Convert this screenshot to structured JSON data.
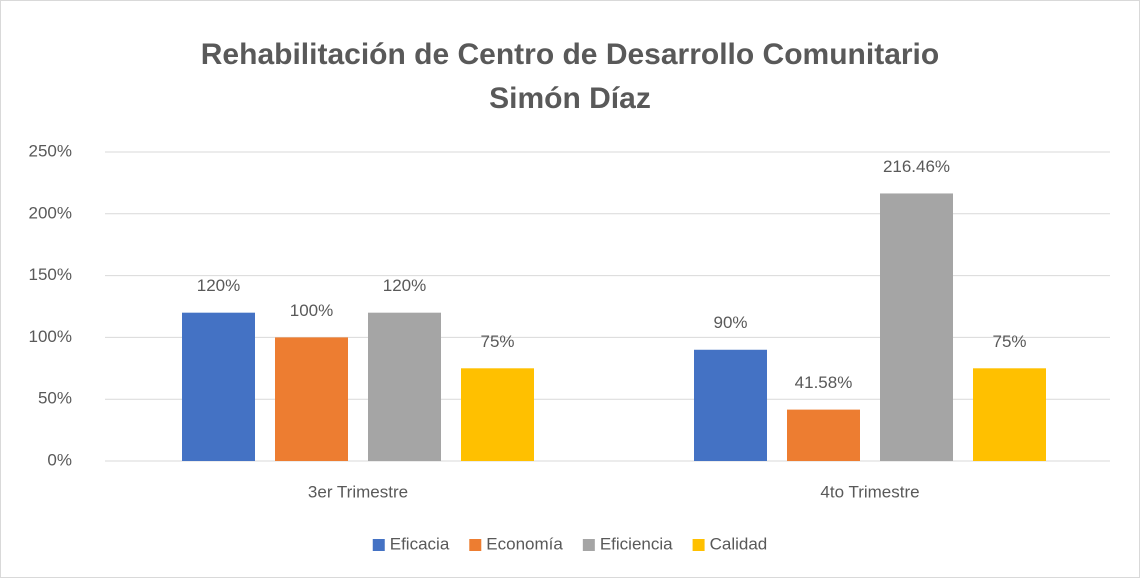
{
  "chart_data": {
    "type": "bar",
    "title": [
      "Rehabilitación de Centro de Desarrollo Comunitario",
      "Simón Díaz"
    ],
    "categories": [
      "3er Trimestre",
      "4to Trimestre"
    ],
    "series": [
      {
        "name": "Eficacia",
        "color": "#4472c4",
        "values": [
          120,
          90
        ],
        "value_labels": [
          "120%",
          "90%"
        ]
      },
      {
        "name": "Economía",
        "color": "#ed7d31",
        "values": [
          100,
          41.58
        ],
        "value_labels": [
          "100%",
          "41.58%"
        ]
      },
      {
        "name": "Eficiencia",
        "color": "#a5a5a5",
        "values": [
          120,
          216.46
        ],
        "value_labels": [
          "120%",
          "216.46%"
        ]
      },
      {
        "name": "Calidad",
        "color": "#ffc000",
        "values": [
          75,
          75
        ],
        "value_labels": [
          "75%",
          "75%"
        ]
      }
    ],
    "ylim": [
      0,
      250
    ],
    "yticks": [
      {
        "value": 0,
        "label": "0%"
      },
      {
        "value": 50,
        "label": "50%"
      },
      {
        "value": 100,
        "label": "100%"
      },
      {
        "value": 150,
        "label": "150%"
      },
      {
        "value": 200,
        "label": "200%"
      },
      {
        "value": 250,
        "label": "250%"
      }
    ],
    "grid": true,
    "legend": "bottom"
  }
}
